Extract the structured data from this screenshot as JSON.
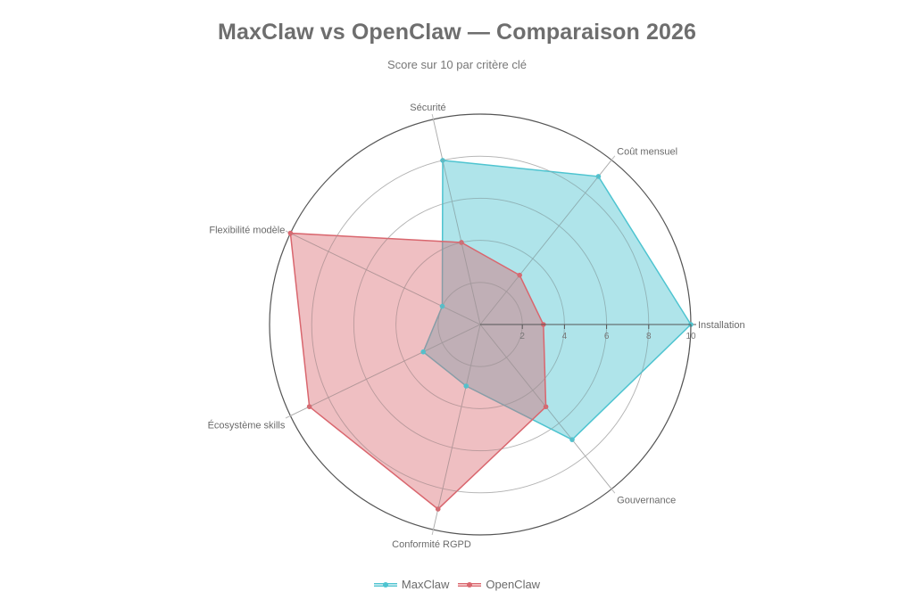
{
  "header": {
    "title": "MaxClaw vs OpenClaw — Comparaison 2026",
    "subtitle": "Score sur 10 par critère clé"
  },
  "legend": [
    {
      "label": "MaxClaw",
      "color": "#4ec4d0",
      "fill": "#b4e4ea"
    },
    {
      "label": "OpenClaw",
      "color": "#d9666e",
      "fill": "#f2bcbe"
    }
  ],
  "chart_data": {
    "type": "radar",
    "title": "MaxClaw vs OpenClaw — Comparaison 2026",
    "subtitle": "Score sur 10 par critère clé",
    "categories": [
      "Installation",
      "Gouvernance",
      "Conformité RGPD",
      "Écosystème skills",
      "Flexibilité modèle",
      "Sécurité",
      "Coût mensuel"
    ],
    "series": [
      {
        "name": "MaxClaw",
        "values": [
          10,
          7,
          3,
          3,
          2,
          8,
          9
        ],
        "color": "#4ec4d0"
      },
      {
        "name": "OpenClaw",
        "values": [
          3,
          5,
          9,
          9,
          10,
          4,
          3
        ],
        "color": "#d9666e"
      }
    ],
    "rlim": [
      0,
      10
    ],
    "ticks": [
      "2",
      "4",
      "6",
      "8",
      "10"
    ],
    "grid": true,
    "legend_position": "bottom"
  }
}
